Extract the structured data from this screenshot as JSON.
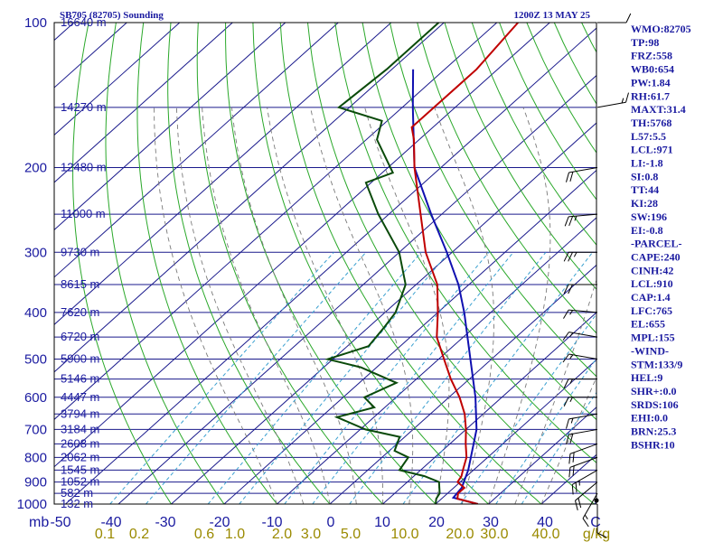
{
  "title": "SB705 (82705) Sounding",
  "datetime": "1200Z 13 MAY 25",
  "chart_data": {
    "type": "line",
    "pressure_levels": [
      100,
      200,
      300,
      400,
      500,
      600,
      700,
      800,
      900,
      1000
    ],
    "height_levels": [
      {
        "p": 100,
        "label": "16640 m"
      },
      {
        "p": 150,
        "label": "14270 m"
      },
      {
        "p": 200,
        "label": "12480 m"
      },
      {
        "p": 250,
        "label": "11000 m"
      },
      {
        "p": 300,
        "label": "9730 m"
      },
      {
        "p": 350,
        "label": "8615 m"
      },
      {
        "p": 400,
        "label": "7620 m"
      },
      {
        "p": 450,
        "label": "6720 m"
      },
      {
        "p": 500,
        "label": "5900 m"
      },
      {
        "p": 550,
        "label": "5146 m"
      },
      {
        "p": 600,
        "label": "4447 m"
      },
      {
        "p": 650,
        "label": "3794 m"
      },
      {
        "p": 700,
        "label": "3184 m"
      },
      {
        "p": 750,
        "label": "2608 m"
      },
      {
        "p": 800,
        "label": "2062 m"
      },
      {
        "p": 850,
        "label": "1545 m"
      },
      {
        "p": 900,
        "label": "1052 m"
      },
      {
        "p": 950,
        "label": "582 m"
      },
      {
        "p": 1000,
        "label": "132 m"
      }
    ],
    "x_ticks": [
      "-50",
      "-40",
      "-30",
      "-20",
      "-10",
      "0",
      "10",
      "20",
      "30",
      "40",
      "C"
    ],
    "x_unit_left": "mb",
    "mixing_ratio_labels": [
      "0.1",
      "0.2",
      "0.6",
      "1.0",
      "2.0",
      "3.0",
      "5.0",
      "10.0",
      "20.0",
      "30.0",
      "40.0",
      "g/kg"
    ],
    "mixing_ratio_values": [
      0.1,
      0.2,
      0.6,
      1.0,
      2.0,
      3.0,
      5.0,
      10.0,
      20.0,
      30.0,
      40.0
    ],
    "temperature": [
      {
        "p": 1000,
        "t": 28
      },
      {
        "p": 975,
        "t": 23
      },
      {
        "p": 950,
        "t": 22
      },
      {
        "p": 925,
        "t": 22
      },
      {
        "p": 900,
        "t": 19.5
      },
      {
        "p": 875,
        "t": 19
      },
      {
        "p": 850,
        "t": 18
      },
      {
        "p": 800,
        "t": 16
      },
      {
        "p": 750,
        "t": 13
      },
      {
        "p": 700,
        "t": 10
      },
      {
        "p": 650,
        "t": 6.5
      },
      {
        "p": 600,
        "t": 2
      },
      {
        "p": 550,
        "t": -3.5
      },
      {
        "p": 500,
        "t": -9
      },
      {
        "p": 450,
        "t": -15
      },
      {
        "p": 400,
        "t": -20
      },
      {
        "p": 350,
        "t": -26
      },
      {
        "p": 300,
        "t": -35
      },
      {
        "p": 250,
        "t": -44
      },
      {
        "p": 200,
        "t": -55
      },
      {
        "p": 175,
        "t": -61
      },
      {
        "p": 165,
        "t": -64
      },
      {
        "p": 150,
        "t": -64
      },
      {
        "p": 125,
        "t": -64
      },
      {
        "p": 100,
        "t": -66
      }
    ],
    "dewpoint": [
      {
        "p": 1000,
        "t": 20
      },
      {
        "p": 975,
        "t": 19
      },
      {
        "p": 950,
        "t": 18.5
      },
      {
        "p": 900,
        "t": 16
      },
      {
        "p": 875,
        "t": 12
      },
      {
        "p": 850,
        "t": 6
      },
      {
        "p": 800,
        "t": 5
      },
      {
        "p": 775,
        "t": 1
      },
      {
        "p": 725,
        "t": -1
      },
      {
        "p": 700,
        "t": -9
      },
      {
        "p": 660,
        "t": -17
      },
      {
        "p": 630,
        "t": -12
      },
      {
        "p": 600,
        "t": -16
      },
      {
        "p": 560,
        "t": -13
      },
      {
        "p": 520,
        "t": -23
      },
      {
        "p": 500,
        "t": -31
      },
      {
        "p": 470,
        "t": -26
      },
      {
        "p": 430,
        "t": -27
      },
      {
        "p": 400,
        "t": -28
      },
      {
        "p": 350,
        "t": -32
      },
      {
        "p": 300,
        "t": -40
      },
      {
        "p": 250,
        "t": -52
      },
      {
        "p": 215,
        "t": -61
      },
      {
        "p": 205,
        "t": -58
      },
      {
        "p": 175,
        "t": -68
      },
      {
        "p": 160,
        "t": -71
      },
      {
        "p": 150,
        "t": -82
      },
      {
        "p": 125,
        "t": -81
      },
      {
        "p": 100,
        "t": -81
      }
    ],
    "parcel": [
      {
        "p": 1000,
        "t": 28
      },
      {
        "p": 970,
        "t": 22
      },
      {
        "p": 925,
        "t": 21.5
      },
      {
        "p": 850,
        "t": 19
      },
      {
        "p": 700,
        "t": 12
      },
      {
        "p": 600,
        "t": 5
      },
      {
        "p": 500,
        "t": -4
      },
      {
        "p": 400,
        "t": -15
      },
      {
        "p": 350,
        "t": -22
      },
      {
        "p": 300,
        "t": -31
      },
      {
        "p": 250,
        "t": -42
      },
      {
        "p": 200,
        "t": -55
      },
      {
        "p": 150,
        "t": -68
      },
      {
        "p": 125,
        "t": -76
      }
    ],
    "wind_barbs": [
      {
        "p": 1000,
        "dir": 180,
        "spd": 10
      },
      {
        "p": 950,
        "dir": 210,
        "spd": 15
      },
      {
        "p": 900,
        "dir": 230,
        "spd": 20
      },
      {
        "p": 850,
        "dir": 240,
        "spd": 25
      },
      {
        "p": 800,
        "dir": 250,
        "spd": 20
      },
      {
        "p": 750,
        "dir": 250,
        "spd": 20
      },
      {
        "p": 700,
        "dir": 260,
        "spd": 20
      },
      {
        "p": 650,
        "dir": 260,
        "spd": 15
      },
      {
        "p": 600,
        "dir": 270,
        "spd": 15
      },
      {
        "p": 550,
        "dir": 270,
        "spd": 15
      },
      {
        "p": 500,
        "dir": 280,
        "spd": 15
      },
      {
        "p": 450,
        "dir": 280,
        "spd": 15
      },
      {
        "p": 400,
        "dir": 275,
        "spd": 15
      },
      {
        "p": 350,
        "dir": 270,
        "spd": 20
      },
      {
        "p": 300,
        "dir": 270,
        "spd": 25
      },
      {
        "p": 250,
        "dir": 265,
        "spd": 25
      },
      {
        "p": 200,
        "dir": 260,
        "spd": 20
      },
      {
        "p": 150,
        "dir": 80,
        "spd": 15
      },
      {
        "p": 100,
        "dir": 90,
        "spd": 10
      }
    ]
  },
  "indices": [
    "WMO:82705",
    "TP:98",
    "FRZ:558",
    "WB0:654",
    "PW:1.84",
    "RH:61.7",
    "MAXT:31.4",
    "TH:5768",
    "L57:5.5",
    "LCL:971",
    "LI:-1.8",
    "SI:0.8",
    "TT:44",
    "KI:28",
    "SW:196",
    "EI:-0.8",
    "-PARCEL-",
    "CAPE:240",
    "CINH:42",
    "LCL:910",
    "CAP:1.4",
    "LFC:765",
    "EL:655",
    "MPL:155",
    "-WIND-",
    "STM:133/9",
    "HEL:9",
    "SHR+:0.0",
    "SRDS:106",
    "EHI:0.0",
    "BRN:25.3",
    "BSHR:10"
  ],
  "colors": {
    "isobar": "#1a1a8c",
    "isotherm": "#1a1a8c",
    "dry_adiabat": "#2aa82a",
    "moist_adiabat": "#7a7a7a",
    "mixing_ratio": "#3aa0d0",
    "temperature": "#c00000",
    "dewpoint": "#0a4a0a",
    "parcel": "#1010b0",
    "index_text": "#1a1aa0",
    "mixing_label": "#9a8a00"
  }
}
